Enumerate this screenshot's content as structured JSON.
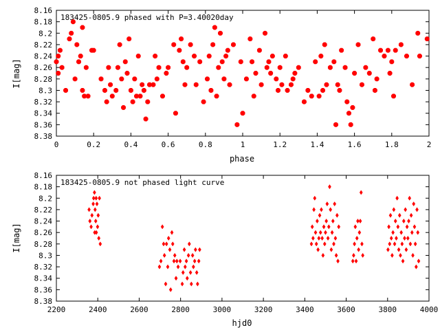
{
  "chart_data": [
    {
      "type": "scatter",
      "title": "183425-0805.9 phased with P=3.40020day",
      "xlabel": "phase",
      "ylabel": "I[mag]",
      "xlim": [
        0,
        2
      ],
      "ylim": [
        8.38,
        8.16
      ],
      "y_inverted": true,
      "xticks": [
        0,
        0.2,
        0.4,
        0.6,
        0.8,
        1,
        1.2,
        1.4,
        1.6,
        1.8,
        2
      ],
      "yticks": [
        8.16,
        8.18,
        8.2,
        8.22,
        8.24,
        8.26,
        8.28,
        8.3,
        8.32,
        8.34,
        8.36,
        8.38
      ],
      "xtick_labels": [
        "0",
        "0.2",
        "0.4",
        "0.6",
        "0.8",
        "1",
        "1.2",
        "1.4",
        "1.6",
        "1.8",
        "2"
      ],
      "ytick_labels": [
        "8.16",
        "8.18",
        "8.2",
        "8.22",
        "8.24",
        "8.26",
        "8.28",
        "8.3",
        "8.32",
        "8.34",
        "8.36",
        "8.38"
      ],
      "marker_color": "#ff0000",
      "grid": false,
      "points": [
        [
          0.0,
          8.25
        ],
        [
          0.01,
          8.27
        ],
        [
          0.01,
          8.24
        ],
        [
          0.02,
          8.23
        ],
        [
          0.03,
          8.26
        ],
        [
          0.05,
          8.3
        ],
        [
          0.07,
          8.21
        ],
        [
          0.08,
          8.2
        ],
        [
          0.09,
          8.18
        ],
        [
          0.1,
          8.28
        ],
        [
          0.11,
          8.22
        ],
        [
          0.12,
          8.25
        ],
        [
          0.13,
          8.24
        ],
        [
          0.14,
          8.19
        ],
        [
          0.14,
          8.3
        ],
        [
          0.15,
          8.31
        ],
        [
          0.16,
          8.26
        ],
        [
          0.17,
          8.31
        ],
        [
          0.19,
          8.23
        ],
        [
          0.2,
          8.23
        ],
        [
          0.24,
          8.28
        ],
        [
          0.26,
          8.3
        ],
        [
          0.27,
          8.32
        ],
        [
          0.28,
          8.26
        ],
        [
          0.29,
          8.29
        ],
        [
          0.3,
          8.31
        ],
        [
          0.32,
          8.3
        ],
        [
          0.33,
          8.26
        ],
        [
          0.34,
          8.22
        ],
        [
          0.35,
          8.28
        ],
        [
          0.36,
          8.33
        ],
        [
          0.37,
          8.25
        ],
        [
          0.38,
          8.27
        ],
        [
          0.39,
          8.21
        ],
        [
          0.4,
          8.3
        ],
        [
          0.41,
          8.32
        ],
        [
          0.42,
          8.28
        ],
        [
          0.43,
          8.31
        ],
        [
          0.44,
          8.24
        ],
        [
          0.45,
          8.31
        ],
        [
          0.46,
          8.29
        ],
        [
          0.47,
          8.3
        ],
        [
          0.48,
          8.35
        ],
        [
          0.49,
          8.32
        ],
        [
          0.5,
          8.29
        ],
        [
          0.52,
          8.29
        ],
        [
          0.53,
          8.24
        ],
        [
          0.54,
          8.28
        ],
        [
          0.55,
          8.26
        ],
        [
          0.57,
          8.31
        ],
        [
          0.59,
          8.27
        ],
        [
          0.6,
          8.26
        ],
        [
          0.63,
          8.22
        ],
        [
          0.64,
          8.34
        ],
        [
          0.66,
          8.23
        ],
        [
          0.67,
          8.21
        ],
        [
          0.68,
          8.25
        ],
        [
          0.69,
          8.29
        ],
        [
          0.7,
          8.26
        ],
        [
          0.72,
          8.22
        ],
        [
          0.74,
          8.24
        ],
        [
          0.75,
          8.29
        ],
        [
          0.77,
          8.25
        ],
        [
          0.79,
          8.32
        ],
        [
          0.81,
          8.28
        ],
        [
          0.82,
          8.24
        ],
        [
          0.83,
          8.3
        ],
        [
          0.84,
          8.22
        ],
        [
          0.85,
          8.19
        ],
        [
          0.86,
          8.31
        ],
        [
          0.87,
          8.26
        ],
        [
          0.88,
          8.2
        ],
        [
          0.89,
          8.25
        ],
        [
          0.9,
          8.28
        ],
        [
          0.91,
          8.24
        ],
        [
          0.92,
          8.23
        ],
        [
          0.93,
          8.29
        ],
        [
          0.95,
          8.22
        ],
        [
          0.97,
          8.36
        ],
        [
          0.99,
          8.25
        ],
        [
          1.0,
          8.34
        ],
        [
          1.02,
          8.28
        ],
        [
          1.04,
          8.21
        ],
        [
          1.05,
          8.25
        ],
        [
          1.06,
          8.31
        ],
        [
          1.07,
          8.27
        ],
        [
          1.09,
          8.23
        ],
        [
          1.1,
          8.29
        ],
        [
          1.12,
          8.2
        ],
        [
          1.13,
          8.26
        ],
        [
          1.14,
          8.25
        ],
        [
          1.15,
          8.27
        ],
        [
          1.16,
          8.24
        ],
        [
          1.18,
          8.28
        ],
        [
          1.19,
          8.3
        ],
        [
          1.2,
          8.26
        ],
        [
          1.21,
          8.29
        ],
        [
          1.23,
          8.24
        ],
        [
          1.24,
          8.3
        ],
        [
          1.26,
          8.29
        ],
        [
          1.27,
          8.28
        ],
        [
          1.28,
          8.27
        ],
        [
          1.3,
          8.26
        ],
        [
          1.33,
          8.32
        ],
        [
          1.35,
          8.3
        ],
        [
          1.37,
          8.31
        ],
        [
          1.39,
          8.25
        ],
        [
          1.41,
          8.31
        ],
        [
          1.42,
          8.24
        ],
        [
          1.43,
          8.3
        ],
        [
          1.44,
          8.22
        ],
        [
          1.45,
          8.29
        ],
        [
          1.47,
          8.26
        ],
        [
          1.49,
          8.25
        ],
        [
          1.5,
          8.36
        ],
        [
          1.51,
          8.29
        ],
        [
          1.52,
          8.3
        ],
        [
          1.53,
          8.23
        ],
        [
          1.55,
          8.26
        ],
        [
          1.56,
          8.32
        ],
        [
          1.57,
          8.34
        ],
        [
          1.58,
          8.36
        ],
        [
          1.59,
          8.33
        ],
        [
          1.6,
          8.27
        ],
        [
          1.62,
          8.22
        ],
        [
          1.64,
          8.29
        ],
        [
          1.66,
          8.26
        ],
        [
          1.68,
          8.27
        ],
        [
          1.7,
          8.21
        ],
        [
          1.71,
          8.3
        ],
        [
          1.72,
          8.28
        ],
        [
          1.74,
          8.23
        ],
        [
          1.76,
          8.24
        ],
        [
          1.78,
          8.23
        ],
        [
          1.79,
          8.27
        ],
        [
          1.8,
          8.25
        ],
        [
          1.81,
          8.31
        ],
        [
          1.82,
          8.23
        ],
        [
          1.85,
          8.22
        ],
        [
          1.88,
          8.24
        ],
        [
          1.91,
          8.29
        ],
        [
          1.94,
          8.2
        ],
        [
          1.95,
          8.24
        ],
        [
          1.99,
          8.21
        ]
      ]
    },
    {
      "type": "scatter",
      "title": "183425-0805.9 not phased light curve",
      "xlabel": "hjd0",
      "ylabel": "I[mag]",
      "xlim": [
        2200,
        4000
      ],
      "ylim": [
        8.38,
        8.16
      ],
      "y_inverted": true,
      "xticks": [
        2200,
        2400,
        2600,
        2800,
        3000,
        3200,
        3400,
        3600,
        3800,
        4000
      ],
      "yticks": [
        8.16,
        8.18,
        8.2,
        8.22,
        8.24,
        8.26,
        8.28,
        8.3,
        8.32,
        8.34,
        8.36,
        8.38
      ],
      "xtick_labels": [
        "2200",
        "2400",
        "2600",
        "2800",
        "3000",
        "3200",
        "3400",
        "3600",
        "3800",
        "4000"
      ],
      "ytick_labels": [
        "8.16",
        "8.18",
        "8.2",
        "8.22",
        "8.24",
        "8.26",
        "8.28",
        "8.3",
        "8.32",
        "8.34",
        "8.36",
        "8.38"
      ],
      "marker_color": "#ff0000",
      "grid": false,
      "points": [
        [
          2358,
          8.22
        ],
        [
          2362,
          8.24
        ],
        [
          2368,
          8.25
        ],
        [
          2372,
          8.23
        ],
        [
          2378,
          8.21
        ],
        [
          2380,
          8.2
        ],
        [
          2384,
          8.19
        ],
        [
          2387,
          8.22
        ],
        [
          2390,
          8.24
        ],
        [
          2393,
          8.26
        ],
        [
          2396,
          8.21
        ],
        [
          2399,
          8.25
        ],
        [
          2402,
          8.23
        ],
        [
          2405,
          8.27
        ],
        [
          2408,
          8.2
        ],
        [
          2412,
          8.28
        ],
        [
          2385,
          8.26
        ],
        [
          2392,
          8.2
        ],
        [
          2698,
          8.32
        ],
        [
          2705,
          8.31
        ],
        [
          2712,
          8.25
        ],
        [
          2718,
          8.28
        ],
        [
          2722,
          8.3
        ],
        [
          2728,
          8.35
        ],
        [
          2732,
          8.28
        ],
        [
          2738,
          8.32
        ],
        [
          2742,
          8.27
        ],
        [
          2748,
          8.29
        ],
        [
          2752,
          8.36
        ],
        [
          2758,
          8.26
        ],
        [
          2762,
          8.28
        ],
        [
          2768,
          8.31
        ],
        [
          2772,
          8.3
        ],
        [
          2778,
          8.34
        ],
        [
          2782,
          8.31
        ],
        [
          2788,
          8.32
        ],
        [
          2798,
          8.31
        ],
        [
          2808,
          8.35
        ],
        [
          2812,
          8.33
        ],
        [
          2818,
          8.29
        ],
        [
          2822,
          8.32
        ],
        [
          2828,
          8.31
        ],
        [
          2832,
          8.34
        ],
        [
          2838,
          8.3
        ],
        [
          2842,
          8.28
        ],
        [
          2848,
          8.33
        ],
        [
          2852,
          8.35
        ],
        [
          2858,
          8.3
        ],
        [
          2862,
          8.32
        ],
        [
          2868,
          8.31
        ],
        [
          2872,
          8.29
        ],
        [
          2878,
          8.33
        ],
        [
          2882,
          8.35
        ],
        [
          2888,
          8.31
        ],
        [
          2892,
          8.29
        ],
        [
          3432,
          8.28
        ],
        [
          3436,
          8.25
        ],
        [
          3440,
          8.27
        ],
        [
          3444,
          8.22
        ],
        [
          3448,
          8.2
        ],
        [
          3452,
          8.26
        ],
        [
          3456,
          8.28
        ],
        [
          3460,
          8.24
        ],
        [
          3464,
          8.29
        ],
        [
          3468,
          8.27
        ],
        [
          3472,
          8.23
        ],
        [
          3476,
          8.26
        ],
        [
          3480,
          8.22
        ],
        [
          3484,
          8.27
        ],
        [
          3488,
          8.3
        ],
        [
          3492,
          8.25
        ],
        [
          3496,
          8.28
        ],
        [
          3500,
          8.26
        ],
        [
          3504,
          8.24
        ],
        [
          3508,
          8.21
        ],
        [
          3512,
          8.27
        ],
        [
          3516,
          8.25
        ],
        [
          3520,
          8.18
        ],
        [
          3524,
          8.22
        ],
        [
          3528,
          8.29
        ],
        [
          3532,
          8.26
        ],
        [
          3536,
          8.24
        ],
        [
          3540,
          8.28
        ],
        [
          3544,
          8.21
        ],
        [
          3548,
          8.27
        ],
        [
          3552,
          8.3
        ],
        [
          3556,
          8.23
        ],
        [
          3560,
          8.31
        ],
        [
          3564,
          8.25
        ],
        [
          3632,
          8.31
        ],
        [
          3636,
          8.3
        ],
        [
          3640,
          8.28
        ],
        [
          3644,
          8.25
        ],
        [
          3648,
          8.31
        ],
        [
          3652,
          8.27
        ],
        [
          3656,
          8.24
        ],
        [
          3660,
          8.29
        ],
        [
          3664,
          8.26
        ],
        [
          3668,
          8.24
        ],
        [
          3672,
          8.19
        ],
        [
          3676,
          8.28
        ],
        [
          3680,
          8.3
        ],
        [
          3802,
          8.29
        ],
        [
          3806,
          8.25
        ],
        [
          3810,
          8.28
        ],
        [
          3814,
          8.23
        ],
        [
          3818,
          8.27
        ],
        [
          3822,
          8.3
        ],
        [
          3826,
          8.26
        ],
        [
          3830,
          8.22
        ],
        [
          3834,
          8.28
        ],
        [
          3838,
          8.24
        ],
        [
          3842,
          8.27
        ],
        [
          3846,
          8.2
        ],
        [
          3850,
          8.25
        ],
        [
          3854,
          8.29
        ],
        [
          3858,
          8.23
        ],
        [
          3862,
          8.3
        ],
        [
          3866,
          8.26
        ],
        [
          3870,
          8.28
        ],
        [
          3874,
          8.31
        ],
        [
          3878,
          8.24
        ],
        [
          3882,
          8.27
        ],
        [
          3886,
          8.22
        ],
        [
          3890,
          8.29
        ],
        [
          3894,
          8.25
        ],
        [
          3898,
          8.27
        ],
        [
          3902,
          8.24
        ],
        [
          3906,
          8.2
        ],
        [
          3910,
          8.28
        ],
        [
          3914,
          8.23
        ],
        [
          3918,
          8.26
        ],
        [
          3922,
          8.3
        ],
        [
          3926,
          8.21
        ],
        [
          3930,
          8.25
        ],
        [
          3934,
          8.28
        ],
        [
          3938,
          8.32
        ],
        [
          3942,
          8.22
        ],
        [
          3946,
          8.26
        ],
        [
          3950,
          8.31
        ]
      ]
    }
  ]
}
